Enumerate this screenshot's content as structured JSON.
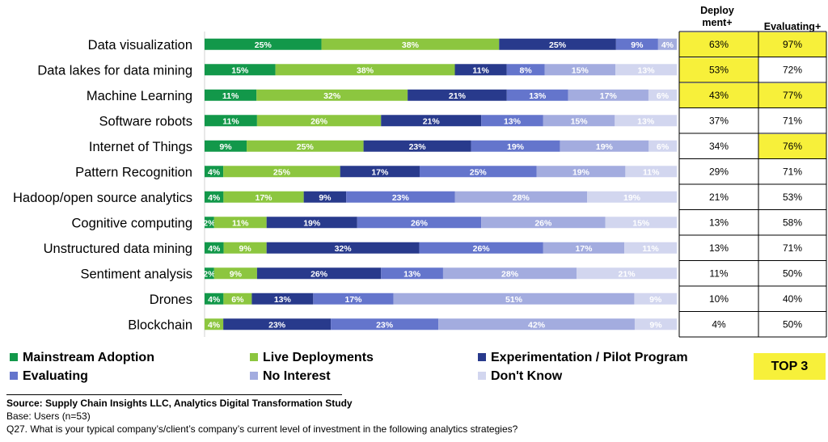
{
  "chart_data": {
    "type": "stacked-bar-horizontal",
    "categories": [
      "Data visualization",
      "Data lakes for data mining",
      "Machine Learning",
      "Software robots",
      "Internet of Things",
      "Pattern Recognition",
      "Hadoop/open source analytics",
      "Cognitive computing",
      "Unstructured data mining",
      "Sentiment analysis",
      "Drones",
      "Blockchain"
    ],
    "series": [
      {
        "name": "Mainstream Adoption",
        "color": "#12984a",
        "values": [
          25,
          15,
          11,
          11,
          9,
          4,
          4,
          2,
          4,
          2,
          4,
          0
        ]
      },
      {
        "name": "Live Deployments",
        "color": "#8cc63f",
        "values": [
          38,
          38,
          32,
          26,
          25,
          25,
          17,
          11,
          9,
          9,
          6,
          4
        ]
      },
      {
        "name": "Experimentation / Pilot Program",
        "color": "#283a8c",
        "values": [
          25,
          11,
          21,
          21,
          23,
          17,
          9,
          19,
          32,
          26,
          13,
          23
        ]
      },
      {
        "name": "Evaluating",
        "color": "#6475cc",
        "values": [
          9,
          8,
          13,
          13,
          19,
          25,
          23,
          26,
          26,
          13,
          17,
          23
        ]
      },
      {
        "name": "No Interest",
        "color": "#a3acdf",
        "values": [
          4,
          15,
          17,
          15,
          19,
          19,
          28,
          26,
          17,
          28,
          51,
          42
        ]
      },
      {
        "name": "Don't Know",
        "color": "#d2d6ef",
        "values": [
          0,
          13,
          6,
          13,
          6,
          11,
          19,
          15,
          11,
          21,
          9,
          9
        ]
      }
    ],
    "table": {
      "headers": [
        "Deploy ment+",
        "Evaluating+"
      ],
      "deploy": [
        "63%",
        "53%",
        "43%",
        "37%",
        "34%",
        "29%",
        "21%",
        "13%",
        "13%",
        "11%",
        "10%",
        "4%"
      ],
      "evaluating": [
        "97%",
        "72%",
        "77%",
        "71%",
        "76%",
        "71%",
        "53%",
        "58%",
        "71%",
        "50%",
        "40%",
        "50%"
      ],
      "highlight_deploy": [
        true,
        true,
        true,
        false,
        false,
        false,
        false,
        false,
        false,
        false,
        false,
        false
      ],
      "highlight_evaluating": [
        true,
        false,
        true,
        false,
        true,
        false,
        false,
        false,
        false,
        false,
        false,
        false
      ],
      "highlight_color": "#f7f03a"
    }
  },
  "header": {
    "deploy_line1": "Deploy",
    "deploy_line2": "ment+",
    "evaluating": "Evaluating+"
  },
  "legend": [
    "Mainstream Adoption",
    "Live Deployments",
    "Experimentation / Pilot Program",
    "Evaluating",
    "No Interest",
    "Don't Know"
  ],
  "badge": "TOP 3",
  "source": {
    "line1": "Source:  Supply Chain Insights LLC, Analytics Digital Transformation Study",
    "line2": "Base: Users (n=53)",
    "line3": "Q27. What is your typical company’s/client’s company’s current level of investment in the following analytics strategies?"
  }
}
